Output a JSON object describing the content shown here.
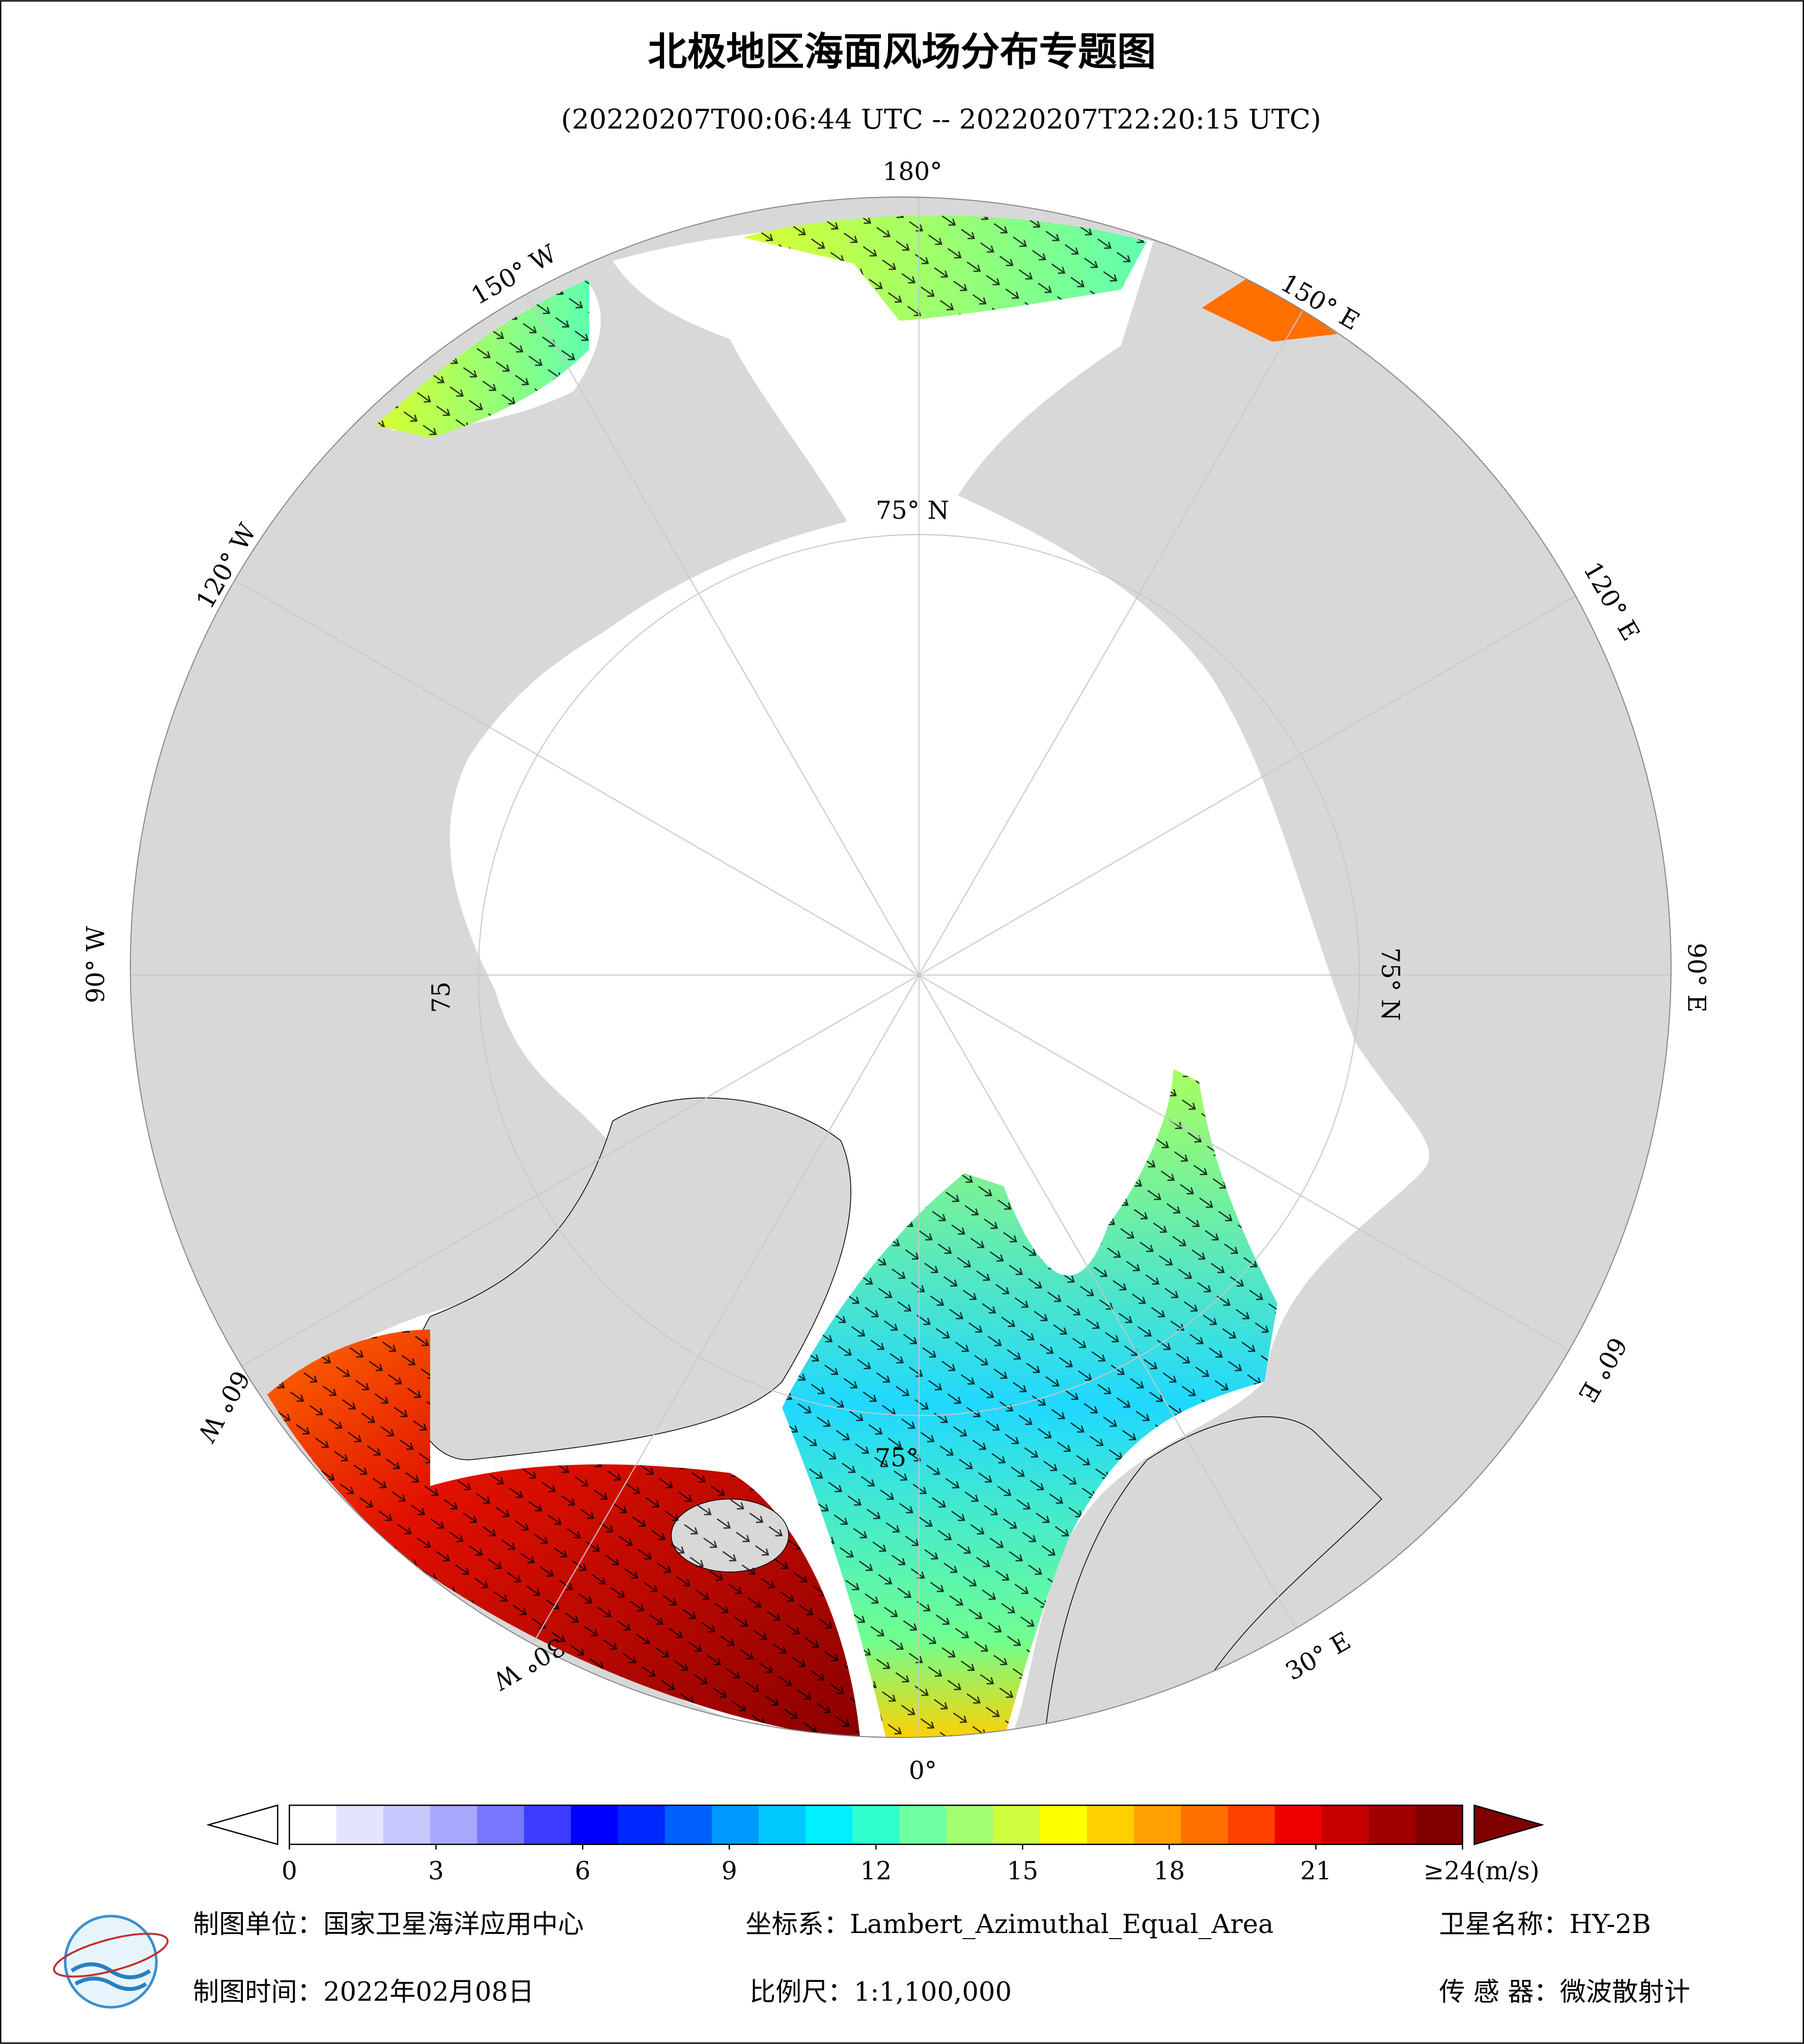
{
  "header": {
    "title": "北极地区海面风场分布专题图",
    "subtitle": "(20220207T00:06:44 UTC -- 20220207T22:20:15 UTC)"
  },
  "map": {
    "meridian_labels": [
      "180°",
      "150° E",
      "120° E",
      "90° E",
      "60° E",
      "30° E",
      "0°",
      "30° W",
      "60° W",
      "90° W",
      "120° W",
      "150° W"
    ],
    "latitude_labels": [
      "75° N",
      "75° N",
      "75",
      "75°"
    ]
  },
  "colorbar": {
    "lim": [
      0,
      24
    ],
    "ticks": [
      0,
      3,
      6,
      9,
      12,
      15,
      18,
      21,
      {
        "value": 24,
        "label": "≥24(m/s)"
      }
    ],
    "colors": [
      "#ffffff",
      "#e4e4ff",
      "#c8c8ff",
      "#a8a8ff",
      "#7878ff",
      "#3c3cff",
      "#0000ff",
      "#0028ff",
      "#0060ff",
      "#0098ff",
      "#00c8ff",
      "#00f0ff",
      "#30ffd0",
      "#70ffa0",
      "#a0ff70",
      "#d0ff40",
      "#ffff00",
      "#ffd000",
      "#ffa000",
      "#ff7000",
      "#ff4000",
      "#f00000",
      "#c80000",
      "#a00000",
      "#800000"
    ],
    "under_color": "#ffffff",
    "over_color": "#800000"
  },
  "footer": {
    "unit": "制图单位：国家卫星海洋应用中心",
    "projection": "坐标系：Lambert_Azimuthal_Equal_Area",
    "satellite": "卫星名称：HY-2B",
    "date": "制图时间：2022年02月08日",
    "scale": "比例尺：1:1,100,000",
    "sensor": "传 感 器：微波散射计"
  }
}
